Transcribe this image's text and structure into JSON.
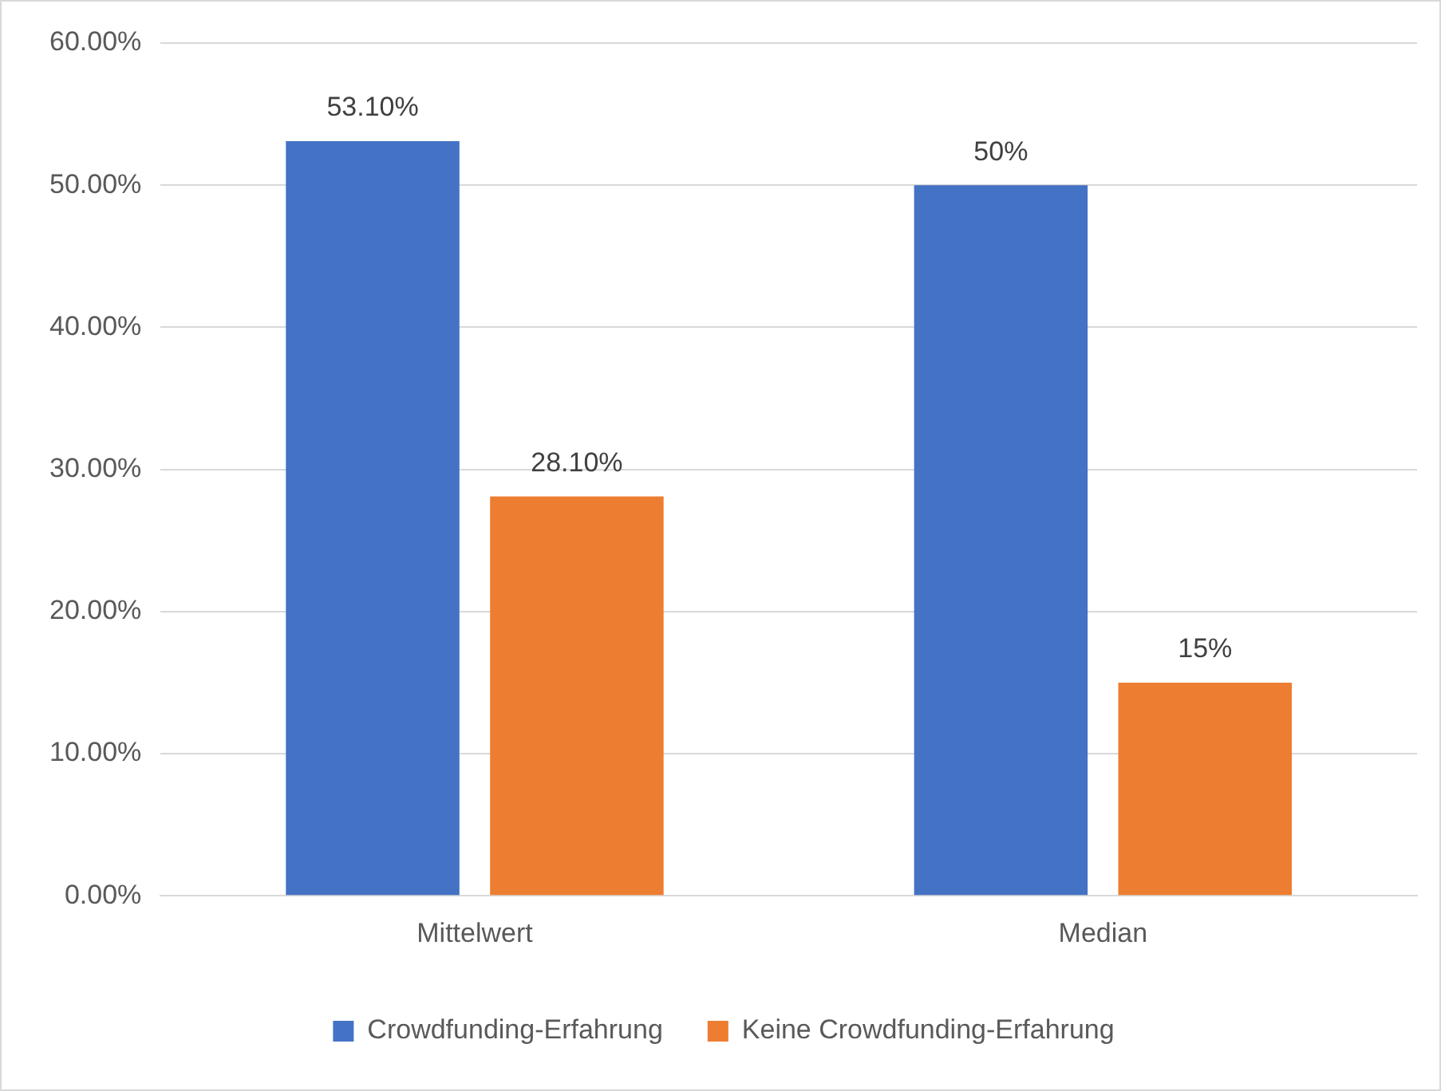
{
  "chart_data": {
    "type": "bar",
    "categories": [
      "Mittelwert",
      "Median"
    ],
    "series": [
      {
        "name": "Crowdfunding-Erfahrung",
        "color": "#4472c4",
        "values": [
          53.1,
          50
        ],
        "value_labels": [
          "53.10%",
          "50%"
        ]
      },
      {
        "name": "Keine Crowdfunding-Erfahrung",
        "color": "#ed7d31",
        "values": [
          28.1,
          15
        ],
        "value_labels": [
          "28.10%",
          "15%"
        ]
      }
    ],
    "ylim": [
      0,
      60
    ],
    "yticks": [
      {
        "value": 0,
        "label": "0.00%"
      },
      {
        "value": 10,
        "label": "10.00%"
      },
      {
        "value": 20,
        "label": "20.00%"
      },
      {
        "value": 30,
        "label": "30.00%"
      },
      {
        "value": 40,
        "label": "40.00%"
      },
      {
        "value": 50,
        "label": "50.00%"
      },
      {
        "value": 60,
        "label": "60.00%"
      }
    ],
    "grid": "y",
    "legend": "bottom"
  }
}
